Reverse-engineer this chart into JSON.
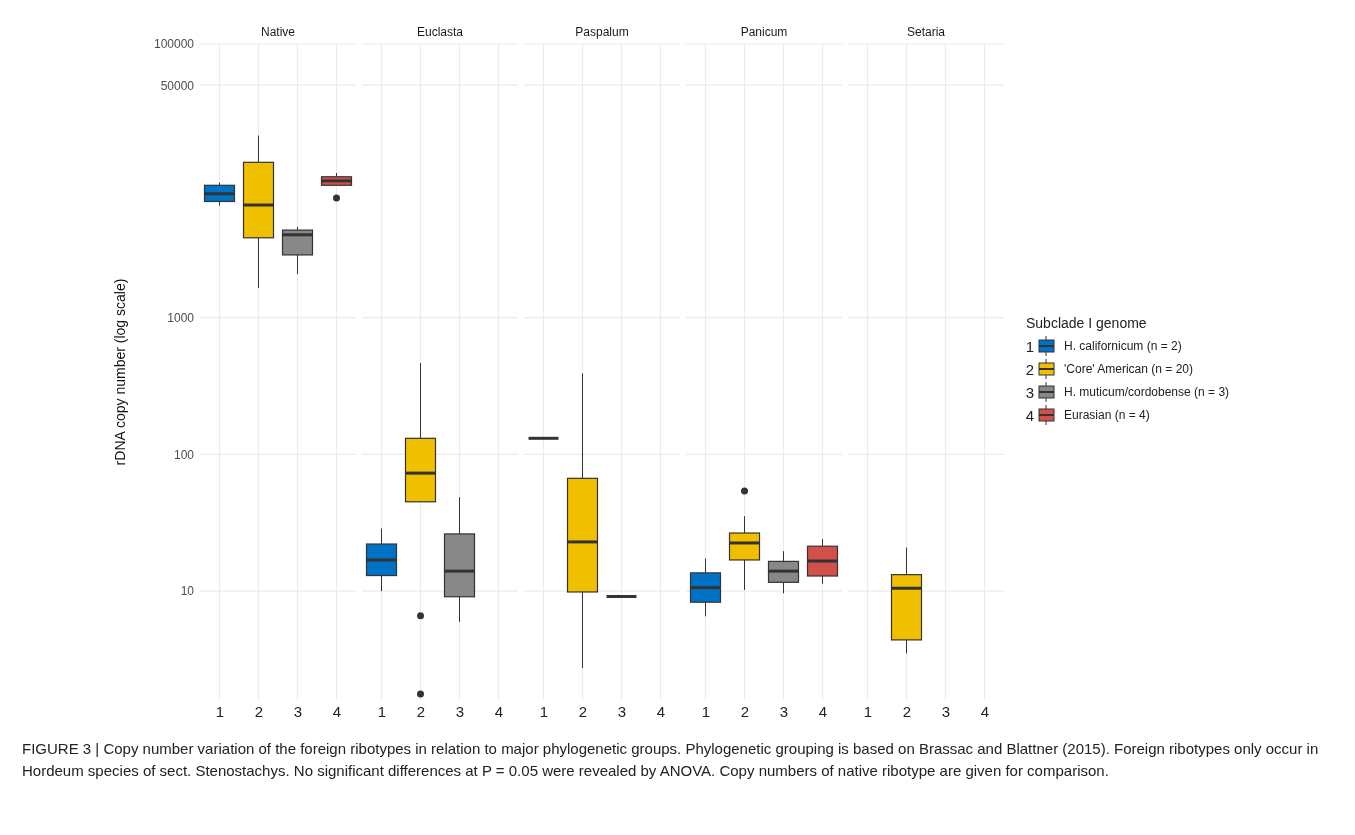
{
  "chart_data": [
    {
      "type": "box",
      "title": "Native",
      "ylabel": "rDNA copy number (log scale)",
      "categories": [
        "1",
        "2",
        "3",
        "4"
      ],
      "log": true,
      "grid": true,
      "ylim": [
        1.6,
        100000
      ],
      "yticks": [
        10,
        100,
        1000,
        50000,
        100000
      ],
      "annotations": [
        "FIGURE 3 | Copy number variation of the foreign ribotypes in relation to major phylogenetic groups. Phylogenetic grouping is based on Brassac and Blattner (2015). Foreign ribotypes only occur in Hordeum species of sect. Stenostachys. No significant differences at P = 0.05 were revealed by ANOVA. Copy numbers of native ribotype are given for comparison."
      ],
      "series": [
        {
          "color": "#0072c6",
          "boxes": [
            {
              "low": 6580,
              "q1": 7060,
              "median": 8030,
              "q3": 9270,
              "high": 9700
            },
            null,
            null,
            null
          ]
        },
        {
          "color": "#f0c000",
          "boxes": [
            null,
            {
              "low": 1650,
              "q1": 3830,
              "median": 6650,
              "q3": 13650,
              "high": 21400
            },
            null,
            null
          ]
        },
        {
          "color": "#888888",
          "boxes": [
            null,
            null,
            {
              "low": 2080,
              "q1": 2870,
              "median": 4030,
              "q3": 4360,
              "high": 4590
            },
            null
          ]
        },
        {
          "color": "#d2504a",
          "boxes": [
            null,
            null,
            null,
            {
              "low": 9270,
              "q1": 9270,
              "median": 9980,
              "q3": 10700,
              "high": 11400,
              "outliers": [
                7470
              ]
            }
          ]
        }
      ]
    },
    {
      "type": "box",
      "title": "Euclasta",
      "categories": [
        "1",
        "2",
        "3",
        "4"
      ],
      "log": true,
      "grid": true,
      "tick_labels": "x",
      "ylim": [
        1.6,
        100000
      ],
      "yticks": [
        10,
        100,
        1000,
        50000,
        100000
      ],
      "series": [
        {
          "color": "#0072c6",
          "boxes": [
            {
              "low": 10,
              "q1": 13.0,
              "median": 16.9,
              "q3": 22.1,
              "high": 28.7
            },
            null,
            null,
            null
          ]
        },
        {
          "color": "#f0c000",
          "boxes": [
            null,
            {
              "low": 45.0,
              "q1": 45.0,
              "median": 72.9,
              "q3": 131,
              "high": 465,
              "outliers": [
                6.62,
                1.77
              ]
            },
            null,
            null
          ]
        },
        {
          "color": "#888888",
          "boxes": [
            null,
            null,
            {
              "low": 5.96,
              "q1": 9.1,
              "median": 14.0,
              "q3": 26.2,
              "high": 48.6
            },
            null
          ]
        }
      ]
    },
    {
      "type": "box",
      "title": "Paspalum",
      "categories": [
        "1",
        "2",
        "3",
        "4"
      ],
      "log": true,
      "grid": true,
      "tick_labels": "x",
      "ylim": [
        1.6,
        100000
      ],
      "yticks": [
        10,
        100,
        1000,
        50000,
        100000
      ],
      "series": [
        {
          "color": "#333333",
          "boxes": [
            {
              "low": 131,
              "q1": 131,
              "median": 131,
              "q3": 131,
              "high": 131
            },
            null,
            null,
            null
          ]
        },
        {
          "color": "#f0c000",
          "boxes": [
            null,
            {
              "low": 2.74,
              "q1": 9.86,
              "median": 22.9,
              "q3": 66.8,
              "high": 390
            },
            null,
            null
          ]
        },
        {
          "color": "#333333",
          "boxes": [
            null,
            null,
            {
              "low": 9.14,
              "q1": 9.14,
              "median": 9.14,
              "q3": 9.14,
              "high": 9.14
            },
            null
          ]
        }
      ]
    },
    {
      "type": "box",
      "title": "Panicum",
      "categories": [
        "1",
        "2",
        "3",
        "4"
      ],
      "log": true,
      "grid": true,
      "tick_labels": "x",
      "ylim": [
        1.6,
        100000
      ],
      "yticks": [
        10,
        100,
        1000,
        50000,
        100000
      ],
      "series": [
        {
          "color": "#0072c6",
          "boxes": [
            {
              "low": 6.54,
              "q1": 8.3,
              "median": 10.6,
              "q3": 13.6,
              "high": 17.3
            },
            null,
            null,
            null
          ]
        },
        {
          "color": "#f0c000",
          "boxes": [
            null,
            {
              "low": 10.2,
              "q1": 16.9,
              "median": 22.5,
              "q3": 26.6,
              "high": 35.3,
              "outliers": [
                53.9
              ]
            },
            null,
            null
          ]
        },
        {
          "color": "#888888",
          "boxes": [
            null,
            null,
            {
              "low": 9.65,
              "q1": 11.6,
              "median": 14.0,
              "q3": 16.5,
              "high": 19.6
            },
            null
          ]
        },
        {
          "color": "#d2504a",
          "boxes": [
            null,
            null,
            null,
            {
              "low": 11.3,
              "q1": 12.9,
              "median": 16.6,
              "q3": 21.3,
              "high": 24.0
            }
          ]
        }
      ]
    },
    {
      "type": "box",
      "title": "Setaria",
      "categories": [
        "1",
        "2",
        "3",
        "4"
      ],
      "log": true,
      "grid": true,
      "tick_labels": "x",
      "ylim": [
        1.6,
        100000
      ],
      "yticks": [
        10,
        100,
        1000,
        50000,
        100000
      ],
      "legend": "right",
      "legend_title": "Subclade I genome",
      "series": [
        {
          "name": "H. californicum (n = 2)",
          "color": "#0072c6",
          "boxes": [
            null,
            null,
            null,
            null
          ]
        },
        {
          "name": "'Core' American (n = 20)",
          "color": "#f0c000",
          "boxes": [
            null,
            {
              "low": 3.5,
              "q1": 4.4,
              "median": 10.5,
              "q3": 13.2,
              "high": 20.8
            },
            null,
            null
          ]
        },
        {
          "name": "H. muticum/cordobense (n = 3)",
          "color": "#888888",
          "boxes": [
            null,
            null,
            null,
            null
          ]
        },
        {
          "name": "Eurasian (n = 4)",
          "color": "#d2504a",
          "boxes": [
            null,
            null,
            null,
            null
          ]
        }
      ]
    }
  ]
}
